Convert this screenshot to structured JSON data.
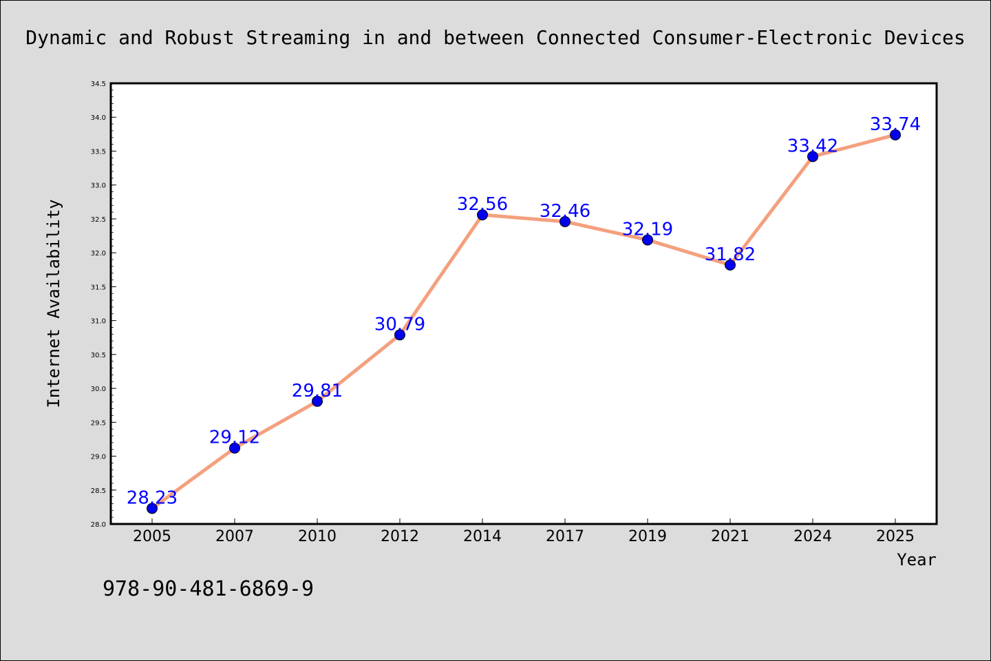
{
  "chart_data": {
    "type": "line",
    "title": "Dynamic and Robust Streaming in and between Connected Consumer-Electronic Devices",
    "xlabel": "Year",
    "ylabel": "Internet Availability",
    "categories": [
      "2005",
      "2007",
      "2010",
      "2012",
      "2014",
      "2017",
      "2019",
      "2021",
      "2024",
      "2025"
    ],
    "series": [
      {
        "values": [
          28.23,
          29.12,
          29.81,
          30.79,
          32.56,
          32.46,
          32.19,
          31.82,
          33.42,
          33.74
        ]
      }
    ],
    "data_labels": [
      "28.23",
      "29.12",
      "29.81",
      "30.79",
      "32.56",
      "32.46",
      "32.19",
      "31.82",
      "33.42",
      "33.74"
    ],
    "ylim": [
      28.0,
      34.5
    ],
    "yticks": [
      "28.0",
      "28.5",
      "29.0",
      "29.5",
      "30.0",
      "30.5",
      "31.0",
      "31.5",
      "32.0",
      "32.5",
      "33.0",
      "33.5",
      "34.0",
      "34.5"
    ],
    "grid": false,
    "legend": "none",
    "colors": {
      "line": "#f4a07e",
      "marker": "#0000ee",
      "label": "#0000ff",
      "plot_background": "#ffffff",
      "figure_background": "#dcdcdc"
    }
  },
  "annotation": "978-90-481-6869-9"
}
